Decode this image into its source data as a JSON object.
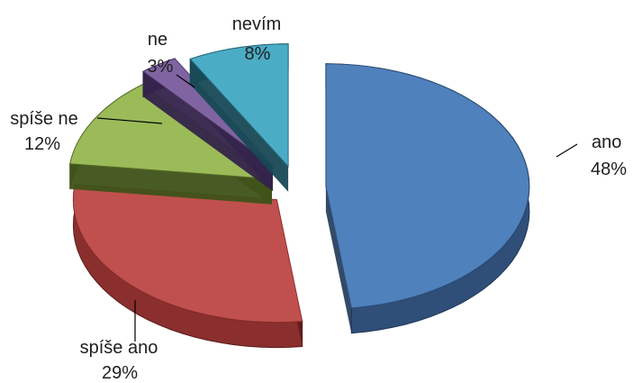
{
  "chart_data": {
    "type": "pie",
    "style": "exploded-3d-pie",
    "slices": [
      {
        "label": "ano",
        "value": 48,
        "value_label": "48%",
        "color": "#4f81bd",
        "side_color": "#2f4f78",
        "dark_color": "#1f3656"
      },
      {
        "label": "spíše ano",
        "value": 29,
        "value_label": "29%",
        "color": "#c0504d",
        "side_color": "#8a2f2d",
        "dark_color": "#5c1d1b"
      },
      {
        "label": "spíše ne",
        "value": 12,
        "value_label": "12%",
        "color": "#9bbb59",
        "side_color": "#556b25",
        "dark_color": "#3f5218"
      },
      {
        "label": "ne",
        "value": 3,
        "value_label": "3%",
        "color": "#8064a2",
        "side_color": "#4b3665",
        "dark_color": "#34234a"
      },
      {
        "label": "nevím",
        "value": 8,
        "value_label": "8%",
        "color": "#4bacc6",
        "side_color": "#25697b",
        "dark_color": "#174955"
      }
    ],
    "legend": "none",
    "title": ""
  }
}
